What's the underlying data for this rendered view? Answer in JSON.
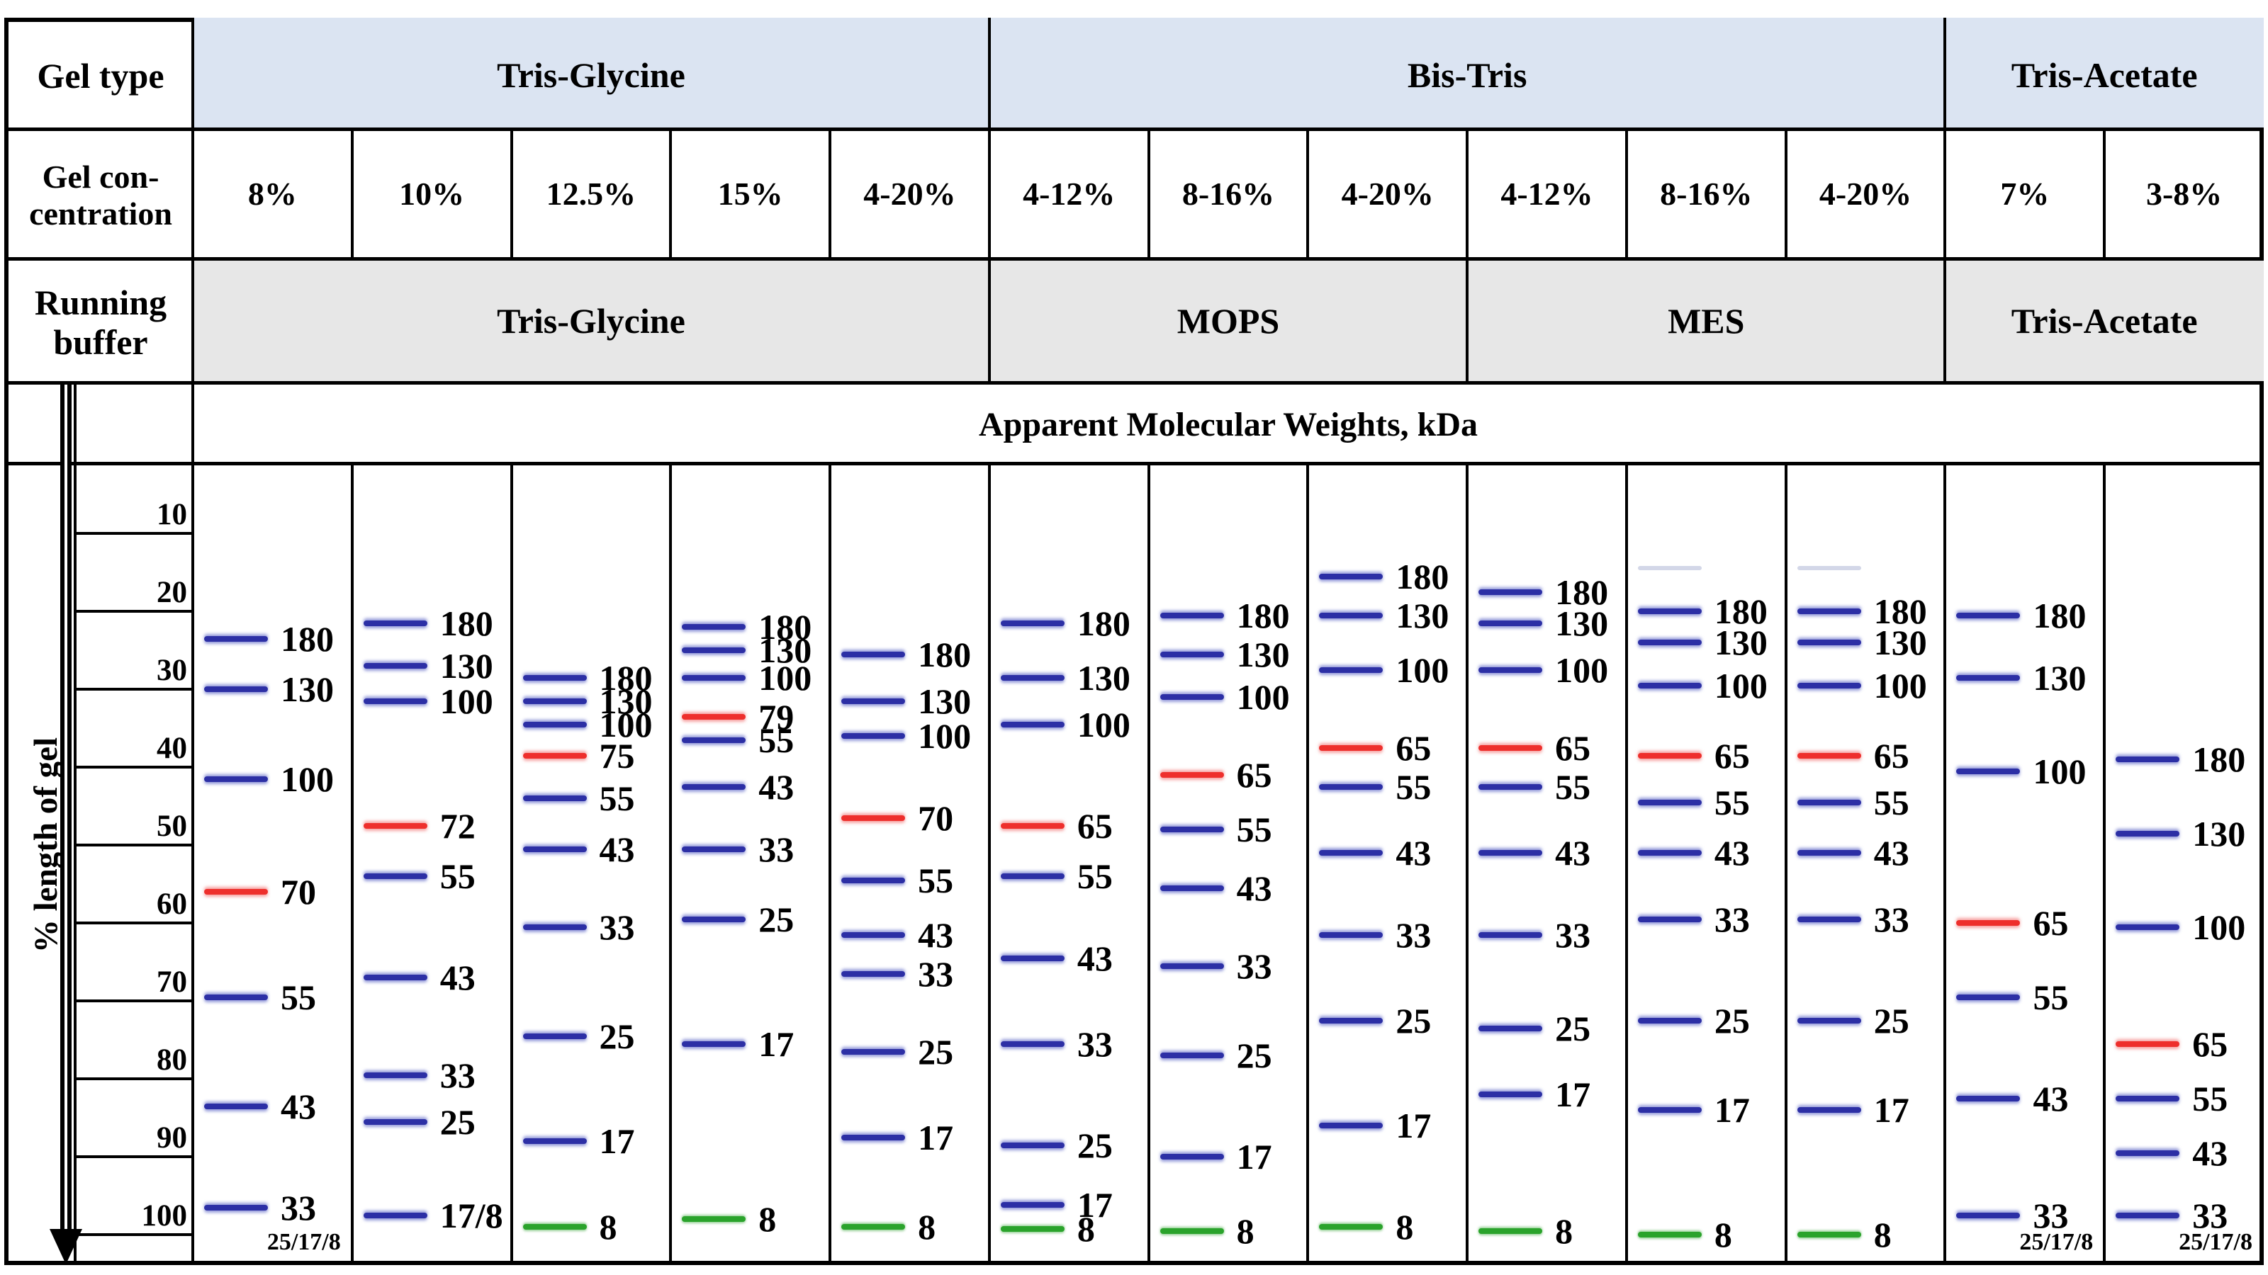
{
  "colors": {
    "band_blue": "#2c2fa5",
    "band_red": "#ee2f2c",
    "band_green": "#2aa32b",
    "band_faint": "#b6bdd8",
    "gel_type_row_fill": "#dbe4f2",
    "buffer_row_fill": "#e7e7e7",
    "border": "#000000"
  },
  "chart_data": {
    "type": "table",
    "title": "Apparent Molecular Weights, kDa",
    "row_labels": {
      "gel_type": "Gel type",
      "gel_concentration_line1": "Gel con-",
      "gel_concentration_line2": "centration",
      "running_buffer_line1": "Running",
      "running_buffer_line2": "buffer"
    },
    "y_axis": {
      "label": "% length of gel",
      "ticks": [
        10,
        20,
        30,
        40,
        50,
        60,
        70,
        80,
        90,
        100
      ],
      "range": [
        0,
        100
      ],
      "direction": "downward-arrow"
    },
    "gel_type_groups": [
      {
        "label": "Tris-Glycine",
        "lanes": 5
      },
      {
        "label": "Bis-Tris",
        "lanes": 6
      },
      {
        "label": "Tris-Acetate",
        "lanes": 2
      }
    ],
    "running_buffer_groups": [
      {
        "label": "Tris-Glycine",
        "lanes": 5
      },
      {
        "label": "MOPS",
        "lanes": 3
      },
      {
        "label": "MES",
        "lanes": 3
      },
      {
        "label": "Tris-Acetate",
        "lanes": 2
      }
    ],
    "lanes": [
      {
        "gel_type": "Tris-Glycine",
        "concentration": "8%",
        "buffer": "Tris-Glycine",
        "footnote": "25/17/8",
        "bands": [
          {
            "kda": "180",
            "pct": 23.5,
            "color": "blue"
          },
          {
            "kda": "130",
            "pct": 30,
            "color": "blue"
          },
          {
            "kda": "100",
            "pct": 41.5,
            "color": "blue"
          },
          {
            "kda": "70",
            "pct": 56,
            "color": "red"
          },
          {
            "kda": "55",
            "pct": 69.5,
            "color": "blue"
          },
          {
            "kda": "43",
            "pct": 83.5,
            "color": "blue"
          },
          {
            "kda": "33",
            "pct": 96.5,
            "color": "blue"
          }
        ]
      },
      {
        "gel_type": "Tris-Glycine",
        "concentration": "10%",
        "buffer": "Tris-Glycine",
        "footnote": "",
        "bands": [
          {
            "kda": "180",
            "pct": 21.5,
            "color": "blue"
          },
          {
            "kda": "130",
            "pct": 27,
            "color": "blue"
          },
          {
            "kda": "100",
            "pct": 31.5,
            "color": "blue"
          },
          {
            "kda": "72",
            "pct": 47.5,
            "color": "red"
          },
          {
            "kda": "55",
            "pct": 54,
            "color": "blue"
          },
          {
            "kda": "43",
            "pct": 67,
            "color": "blue"
          },
          {
            "kda": "33",
            "pct": 79.5,
            "color": "blue"
          },
          {
            "kda": "25",
            "pct": 85.5,
            "color": "blue"
          },
          {
            "kda": "17/8",
            "pct": 97.5,
            "color": "blue"
          }
        ]
      },
      {
        "gel_type": "Tris-Glycine",
        "concentration": "12.5%",
        "buffer": "Tris-Glycine",
        "footnote": "",
        "bands": [
          {
            "kda": "180",
            "pct": 28.5,
            "color": "blue"
          },
          {
            "kda": "130",
            "pct": 31.5,
            "color": "blue"
          },
          {
            "kda": "100",
            "pct": 34.5,
            "color": "blue"
          },
          {
            "kda": "75",
            "pct": 38.5,
            "color": "red"
          },
          {
            "kda": "55",
            "pct": 44,
            "color": "blue"
          },
          {
            "kda": "43",
            "pct": 50.5,
            "color": "blue"
          },
          {
            "kda": "33",
            "pct": 60.5,
            "color": "blue"
          },
          {
            "kda": "25",
            "pct": 74.5,
            "color": "blue"
          },
          {
            "kda": "17",
            "pct": 88,
            "color": "blue"
          },
          {
            "kda": "8",
            "pct": 99,
            "color": "green"
          }
        ]
      },
      {
        "gel_type": "Tris-Glycine",
        "concentration": "15%",
        "buffer": "Tris-Glycine",
        "footnote": "",
        "bands": [
          {
            "kda": "180",
            "pct": 22,
            "color": "blue"
          },
          {
            "kda": "130",
            "pct": 25,
            "color": "blue"
          },
          {
            "kda": "100",
            "pct": 28.5,
            "color": "blue"
          },
          {
            "kda": "79",
            "pct": 33.5,
            "color": "red"
          },
          {
            "kda": "55",
            "pct": 36.5,
            "color": "blue"
          },
          {
            "kda": "43",
            "pct": 42.5,
            "color": "blue"
          },
          {
            "kda": "33",
            "pct": 50.5,
            "color": "blue"
          },
          {
            "kda": "25",
            "pct": 59.5,
            "color": "blue"
          },
          {
            "kda": "17",
            "pct": 75.5,
            "color": "blue"
          },
          {
            "kda": "8",
            "pct": 98,
            "color": "green"
          }
        ]
      },
      {
        "gel_type": "Tris-Glycine",
        "concentration": "4-20%",
        "buffer": "Tris-Glycine",
        "footnote": "",
        "bands": [
          {
            "kda": "180",
            "pct": 25.5,
            "color": "blue"
          },
          {
            "kda": "130",
            "pct": 31.5,
            "color": "blue"
          },
          {
            "kda": "100",
            "pct": 36,
            "color": "blue"
          },
          {
            "kda": "70",
            "pct": 46.5,
            "color": "red"
          },
          {
            "kda": "55",
            "pct": 54.5,
            "color": "blue"
          },
          {
            "kda": "43",
            "pct": 61.5,
            "color": "blue"
          },
          {
            "kda": "33",
            "pct": 66.5,
            "color": "blue"
          },
          {
            "kda": "25",
            "pct": 76.5,
            "color": "blue"
          },
          {
            "kda": "17",
            "pct": 87.5,
            "color": "blue"
          },
          {
            "kda": "8",
            "pct": 99,
            "color": "green"
          }
        ]
      },
      {
        "gel_type": "Bis-Tris",
        "concentration": "4-12%",
        "buffer": "MOPS",
        "footnote": "",
        "bands": [
          {
            "kda": "180",
            "pct": 21.5,
            "color": "blue"
          },
          {
            "kda": "130",
            "pct": 28.5,
            "color": "blue"
          },
          {
            "kda": "100",
            "pct": 34.5,
            "color": "blue"
          },
          {
            "kda": "65",
            "pct": 47.5,
            "color": "red"
          },
          {
            "kda": "55",
            "pct": 54,
            "color": "blue"
          },
          {
            "kda": "43",
            "pct": 64.5,
            "color": "blue"
          },
          {
            "kda": "33",
            "pct": 75.5,
            "color": "blue"
          },
          {
            "kda": "25",
            "pct": 88.5,
            "color": "blue"
          },
          {
            "kda": "17",
            "pct": 96.2,
            "color": "blue"
          },
          {
            "kda": "8",
            "pct": 99.3,
            "color": "green"
          }
        ]
      },
      {
        "gel_type": "Bis-Tris",
        "concentration": "8-16%",
        "buffer": "MOPS",
        "footnote": "",
        "bands": [
          {
            "kda": "180",
            "pct": 20.5,
            "color": "blue"
          },
          {
            "kda": "130",
            "pct": 25.5,
            "color": "blue"
          },
          {
            "kda": "100",
            "pct": 31,
            "color": "blue"
          },
          {
            "kda": "65",
            "pct": 41,
            "color": "red"
          },
          {
            "kda": "55",
            "pct": 48,
            "color": "blue"
          },
          {
            "kda": "43",
            "pct": 55.5,
            "color": "blue"
          },
          {
            "kda": "33",
            "pct": 65.5,
            "color": "blue"
          },
          {
            "kda": "25",
            "pct": 77,
            "color": "blue"
          },
          {
            "kda": "17",
            "pct": 90,
            "color": "blue"
          },
          {
            "kda": "8",
            "pct": 99.5,
            "color": "green"
          }
        ]
      },
      {
        "gel_type": "Bis-Tris",
        "concentration": "4-20%",
        "buffer": "MOPS",
        "footnote": "",
        "bands": [
          {
            "kda": "180",
            "pct": 15.5,
            "color": "blue"
          },
          {
            "kda": "130",
            "pct": 20.5,
            "color": "blue"
          },
          {
            "kda": "100",
            "pct": 27.5,
            "color": "blue"
          },
          {
            "kda": "65",
            "pct": 37.5,
            "color": "red"
          },
          {
            "kda": "55",
            "pct": 42.5,
            "color": "blue"
          },
          {
            "kda": "43",
            "pct": 51,
            "color": "blue"
          },
          {
            "kda": "33",
            "pct": 61.5,
            "color": "blue"
          },
          {
            "kda": "25",
            "pct": 72.5,
            "color": "blue"
          },
          {
            "kda": "17",
            "pct": 86,
            "color": "blue"
          },
          {
            "kda": "8",
            "pct": 99,
            "color": "green"
          }
        ]
      },
      {
        "gel_type": "Bis-Tris",
        "concentration": "4-12%",
        "buffer": "MES",
        "footnote": "",
        "bands": [
          {
            "kda": "180",
            "pct": 17.5,
            "color": "blue"
          },
          {
            "kda": "130",
            "pct": 21.5,
            "color": "blue"
          },
          {
            "kda": "100",
            "pct": 27.5,
            "color": "blue"
          },
          {
            "kda": "65",
            "pct": 37.5,
            "color": "red"
          },
          {
            "kda": "55",
            "pct": 42.5,
            "color": "blue"
          },
          {
            "kda": "43",
            "pct": 51,
            "color": "blue"
          },
          {
            "kda": "33",
            "pct": 61.5,
            "color": "blue"
          },
          {
            "kda": "25",
            "pct": 73.5,
            "color": "blue"
          },
          {
            "kda": "17",
            "pct": 82,
            "color": "blue"
          },
          {
            "kda": "8",
            "pct": 99.5,
            "color": "green"
          }
        ]
      },
      {
        "gel_type": "Bis-Tris",
        "concentration": "8-16%",
        "buffer": "MES",
        "footnote": "",
        "bands": [
          {
            "kda": "",
            "pct": 14.5,
            "color": "faint"
          },
          {
            "kda": "180",
            "pct": 20,
            "color": "blue"
          },
          {
            "kda": "130",
            "pct": 24,
            "color": "blue"
          },
          {
            "kda": "100",
            "pct": 29.5,
            "color": "blue"
          },
          {
            "kda": "65",
            "pct": 38.5,
            "color": "red"
          },
          {
            "kda": "55",
            "pct": 44.5,
            "color": "blue"
          },
          {
            "kda": "43",
            "pct": 51,
            "color": "blue"
          },
          {
            "kda": "33",
            "pct": 59.5,
            "color": "blue"
          },
          {
            "kda": "25",
            "pct": 72.5,
            "color": "blue"
          },
          {
            "kda": "17",
            "pct": 84,
            "color": "blue"
          },
          {
            "kda": "8",
            "pct": 100,
            "color": "green"
          }
        ]
      },
      {
        "gel_type": "Bis-Tris",
        "concentration": "4-20%",
        "buffer": "MES",
        "footnote": "",
        "bands": [
          {
            "kda": "",
            "pct": 14.5,
            "color": "faint"
          },
          {
            "kda": "180",
            "pct": 20,
            "color": "blue"
          },
          {
            "kda": "130",
            "pct": 24,
            "color": "blue"
          },
          {
            "kda": "100",
            "pct": 29.5,
            "color": "blue"
          },
          {
            "kda": "65",
            "pct": 38.5,
            "color": "red"
          },
          {
            "kda": "55",
            "pct": 44.5,
            "color": "blue"
          },
          {
            "kda": "43",
            "pct": 51,
            "color": "blue"
          },
          {
            "kda": "33",
            "pct": 59.5,
            "color": "blue"
          },
          {
            "kda": "25",
            "pct": 72.5,
            "color": "blue"
          },
          {
            "kda": "17",
            "pct": 84,
            "color": "blue"
          },
          {
            "kda": "8",
            "pct": 100,
            "color": "green"
          }
        ]
      },
      {
        "gel_type": "Tris-Acetate",
        "concentration": "7%",
        "buffer": "Tris-Acetate",
        "footnote": "25/17/8",
        "bands": [
          {
            "kda": "180",
            "pct": 20.5,
            "color": "blue"
          },
          {
            "kda": "130",
            "pct": 28.5,
            "color": "blue"
          },
          {
            "kda": "100",
            "pct": 40.5,
            "color": "blue"
          },
          {
            "kda": "65",
            "pct": 60,
            "color": "red"
          },
          {
            "kda": "55",
            "pct": 69.5,
            "color": "blue"
          },
          {
            "kda": "43",
            "pct": 82.5,
            "color": "blue"
          },
          {
            "kda": "33",
            "pct": 97.5,
            "color": "blue"
          }
        ]
      },
      {
        "gel_type": "Tris-Acetate",
        "concentration": "3-8%",
        "buffer": "Tris-Acetate",
        "footnote": "25/17/8",
        "bands": [
          {
            "kda": "180",
            "pct": 39,
            "color": "blue"
          },
          {
            "kda": "130",
            "pct": 48.5,
            "color": "blue"
          },
          {
            "kda": "100",
            "pct": 60.5,
            "color": "blue"
          },
          {
            "kda": "65",
            "pct": 75.5,
            "color": "red"
          },
          {
            "kda": "55",
            "pct": 82.5,
            "color": "blue"
          },
          {
            "kda": "43",
            "pct": 89.5,
            "color": "blue"
          },
          {
            "kda": "33",
            "pct": 97.5,
            "color": "blue"
          }
        ]
      }
    ]
  }
}
